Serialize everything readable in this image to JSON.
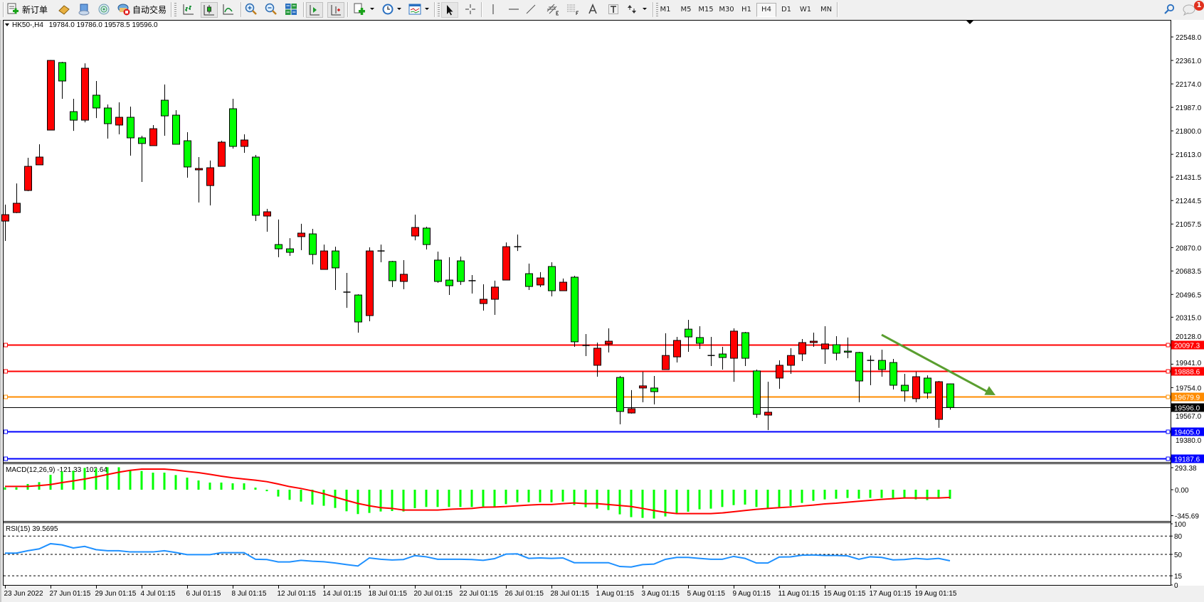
{
  "toolbar": {
    "new_order": "新订单",
    "auto_trading": "自动交易",
    "timeframes": [
      "M1",
      "M5",
      "M15",
      "M30",
      "H1",
      "H4",
      "D1",
      "W1",
      "MN"
    ],
    "active_timeframe": "H4",
    "notification_count": "1"
  },
  "chart": {
    "symbol": "HK50-,H4",
    "ohlc": "19784.0 19786.0 19578.5 19596.0",
    "colors": {
      "bull": "#ff0000",
      "bear": "#00ff00",
      "outline": "#000000",
      "background": "#ffffff"
    },
    "price_axis": [
      "22548.0",
      "22361.0",
      "22174.0",
      "21987.0",
      "21800.0",
      "21613.0",
      "21431.5",
      "21244.5",
      "21057.5",
      "20870.0",
      "20683.5",
      "20496.5",
      "20315.0",
      "20128.0",
      "19941.0",
      "19754.0",
      "19567.0",
      "19380.0"
    ],
    "levels": [
      {
        "price": 20097.3,
        "label": "20097.3",
        "color": "#ff0000"
      },
      {
        "price": 19888.6,
        "label": "19888.6",
        "color": "#ff0000"
      },
      {
        "price": 19679.9,
        "label": "19679.9",
        "color": "#ff8c00"
      },
      {
        "price": 19405.0,
        "label": "19405.0",
        "color": "#0000ff"
      },
      {
        "price": 19187.6,
        "label": "19187.6",
        "color": "#0000ff"
      }
    ],
    "current_price": {
      "price": 19596.0,
      "label": "19596.0",
      "color": "#000000"
    },
    "trend_arrow": {
      "from": {
        "bar": 77,
        "price": 20175
      },
      "to": {
        "bar": 87,
        "price": 19694
      },
      "color": "#5a9e2f"
    },
    "candles": [
      [
        21081,
        21212,
        20923,
        21132
      ],
      [
        21149,
        21381,
        21144,
        21223
      ],
      [
        21325,
        21585,
        21319,
        21517
      ],
      [
        21529,
        21693,
        21529,
        21591
      ],
      [
        21806,
        22365,
        21806,
        22361
      ],
      [
        22344,
        22350,
        22055,
        22197
      ],
      [
        21953,
        22055,
        21800,
        21885
      ],
      [
        21885,
        22338,
        21868,
        22299
      ],
      [
        22084,
        22197,
        21902,
        21982
      ],
      [
        21982,
        22010,
        21738,
        21857
      ],
      [
        21846,
        22027,
        21772,
        21908
      ],
      [
        21908,
        21993,
        21602,
        21744
      ],
      [
        21744,
        21761,
        21393,
        21699
      ],
      [
        21682,
        21846,
        21682,
        21817
      ],
      [
        22044,
        22169,
        21761,
        21919
      ],
      [
        21925,
        21965,
        21693,
        21693
      ],
      [
        21721,
        21789,
        21427,
        21512
      ],
      [
        21489,
        21591,
        21229,
        21500
      ],
      [
        21364,
        21563,
        21206,
        21506
      ],
      [
        21517,
        21721,
        21517,
        21710
      ],
      [
        21976,
        22055,
        21659,
        21676
      ],
      [
        21676,
        21772,
        21625,
        21727
      ],
      [
        21591,
        21608,
        21081,
        21127
      ],
      [
        21121,
        21178,
        20996,
        21155
      ],
      [
        20894,
        21093,
        20793,
        20860
      ],
      [
        20860,
        20945,
        20804,
        20832
      ],
      [
        20957,
        21059,
        20849,
        20985
      ],
      [
        20979,
        21019,
        20736,
        20815
      ],
      [
        20696,
        20894,
        20696,
        20843
      ],
      [
        20843,
        20877,
        20532,
        20708
      ],
      [
        20515,
        20668,
        20390,
        20515
      ],
      [
        20492,
        20498,
        20192,
        20277
      ],
      [
        20328,
        20872,
        20283,
        20843
      ],
      [
        20843,
        20894,
        20753,
        20843
      ],
      [
        20759,
        20764,
        20555,
        20606
      ],
      [
        20600,
        20770,
        20538,
        20657
      ],
      [
        20962,
        21132,
        20928,
        21030
      ],
      [
        21025,
        21036,
        20855,
        20894
      ],
      [
        20770,
        20838,
        20589,
        20600
      ],
      [
        20611,
        20793,
        20492,
        20566
      ],
      [
        20764,
        20798,
        20572,
        20600
      ],
      [
        20606,
        20651,
        20504,
        20606
      ],
      [
        20424,
        20577,
        20368,
        20458
      ],
      [
        20458,
        20606,
        20334,
        20555
      ],
      [
        20611,
        20911,
        20611,
        20877
      ],
      [
        20877,
        20974,
        20843,
        20877
      ],
      [
        20662,
        20742,
        20532,
        20560
      ],
      [
        20572,
        20674,
        20555,
        20628
      ],
      [
        20719,
        20753,
        20481,
        20526
      ],
      [
        20526,
        20623,
        20526,
        20594
      ],
      [
        20634,
        20645,
        20079,
        20119
      ],
      [
        20090,
        20181,
        20005,
        20090
      ],
      [
        19932,
        20113,
        19841,
        20068
      ],
      [
        20102,
        20226,
        20034,
        20124
      ],
      [
        19835,
        19847,
        19462,
        19564
      ],
      [
        19552,
        19734,
        19547,
        19586
      ],
      [
        19751,
        19881,
        19637,
        19768
      ],
      [
        19751,
        19847,
        19620,
        19722
      ],
      [
        19898,
        20187,
        19898,
        20010
      ],
      [
        19999,
        20158,
        19954,
        20130
      ],
      [
        20220,
        20294,
        20039,
        20158
      ],
      [
        20153,
        20243,
        20062,
        20107
      ],
      [
        20010,
        20158,
        19926,
        20010
      ],
      [
        20022,
        20079,
        19898,
        19994
      ],
      [
        19988,
        20226,
        19801,
        20204
      ],
      [
        20192,
        20198,
        19926,
        19988
      ],
      [
        19887,
        19898,
        19513,
        19541
      ],
      [
        19535,
        19801,
        19416,
        19558
      ],
      [
        19830,
        19971,
        19745,
        19932
      ],
      [
        19932,
        20068,
        19864,
        20010
      ],
      [
        20022,
        20141,
        19966,
        20113
      ],
      [
        20113,
        20192,
        20079,
        20124
      ],
      [
        20062,
        20243,
        19943,
        20102
      ],
      [
        20096,
        20164,
        19971,
        20028
      ],
      [
        20045,
        20153,
        19988,
        20039
      ],
      [
        20034,
        20039,
        19637,
        19807
      ],
      [
        19971,
        20010,
        19773,
        19971
      ],
      [
        19971,
        20056,
        19841,
        19898
      ],
      [
        19954,
        19983,
        19739,
        19773
      ],
      [
        19773,
        19864,
        19643,
        19728
      ],
      [
        19666,
        19881,
        19637,
        19841
      ],
      [
        19830,
        19852,
        19666,
        19711
      ],
      [
        19501,
        19807,
        19434,
        19801
      ],
      [
        19784,
        19786,
        19578.5,
        19596
      ]
    ]
  },
  "macd": {
    "label": "MACD(12,26,9) -121.33 -102.64",
    "axis": [
      {
        "value": 293.38,
        "label": "293.38"
      },
      {
        "value": 0,
        "label": "0.00"
      },
      {
        "value": -345.69,
        "label": "-345.69"
      }
    ],
    "histogram_color": "#00ff00",
    "signal_color": "#ff0000",
    "histogram": [
      31,
      31,
      76,
      101,
      198,
      243,
      252,
      290,
      284,
      299,
      299,
      255,
      249,
      227,
      227,
      195,
      161,
      123,
      95,
      95,
      85,
      85,
      28,
      -20,
      -91,
      -135,
      -158,
      -198,
      -214,
      -243,
      -287,
      -324,
      -309,
      -290,
      -284,
      -290,
      -246,
      -230,
      -230,
      -230,
      -230,
      -230,
      -224,
      -224,
      -192,
      -167,
      -167,
      -167,
      -167,
      -158,
      -205,
      -233,
      -252,
      -271,
      -328,
      -365,
      -375,
      -384,
      -356,
      -309,
      -293,
      -261,
      -252,
      -230,
      -205,
      -198,
      -230,
      -255,
      -230,
      -217,
      -176,
      -148,
      -129,
      -120,
      -110,
      -120,
      -110,
      -110,
      -110,
      -110,
      -129,
      -139,
      -120,
      -121.33
    ],
    "signal": [
      44,
      44,
      44,
      54,
      69,
      95,
      117,
      142,
      170,
      202,
      233,
      258,
      274,
      274,
      274,
      261,
      243,
      227,
      205,
      180,
      158,
      142,
      126,
      107,
      76,
      41,
      16,
      -16,
      -54,
      -98,
      -142,
      -183,
      -214,
      -239,
      -249,
      -271,
      -271,
      -271,
      -271,
      -261,
      -255,
      -249,
      -233,
      -230,
      -224,
      -214,
      -205,
      -198,
      -198,
      -186,
      -176,
      -186,
      -186,
      -198,
      -211,
      -224,
      -249,
      -277,
      -302,
      -318,
      -318,
      -318,
      -318,
      -309,
      -293,
      -277,
      -261,
      -249,
      -239,
      -230,
      -217,
      -205,
      -189,
      -180,
      -167,
      -154,
      -142,
      -129,
      -120,
      -110,
      -110,
      -110,
      -110,
      -102.64
    ]
  },
  "rsi": {
    "label": "RSI(15) 39.5695",
    "axis": [
      {
        "value": 100,
        "label": "100"
      },
      {
        "value": 80,
        "label": "80"
      },
      {
        "value": 50,
        "label": "50"
      },
      {
        "value": 15,
        "label": "15"
      },
      {
        "value": 0,
        "label": "0"
      }
    ],
    "levels": [
      80,
      50,
      15
    ],
    "color": "#1e90ff",
    "values": [
      52,
      52,
      56,
      59,
      67.5,
      65.5,
      60.5,
      63,
      57.7,
      56,
      56,
      54,
      54,
      54,
      56,
      53,
      49.6,
      49.6,
      49.6,
      52.7,
      52.7,
      52.7,
      42,
      41.6,
      37.6,
      37.6,
      40.3,
      38.8,
      38,
      35.9,
      33.3,
      31,
      44.2,
      42,
      40.9,
      41.6,
      48,
      46,
      42,
      42,
      42,
      41.6,
      40.3,
      43,
      50.4,
      50.8,
      43.5,
      44.2,
      43.5,
      44.2,
      36.4,
      36.4,
      36.4,
      36.4,
      30.2,
      29.4,
      33.3,
      34.1,
      41.9,
      45,
      45,
      43.5,
      42,
      42,
      46.7,
      43.5,
      35.9,
      35.9,
      45.6,
      46,
      48.7,
      49,
      48.2,
      48.2,
      47.5,
      42,
      46,
      45,
      41,
      41.6,
      43.5,
      42,
      43.5,
      39.57
    ]
  },
  "time_axis": [
    {
      "bar": 0,
      "label": "23 Jun 2022"
    },
    {
      "bar": 4,
      "label": "27 Jun 01:15"
    },
    {
      "bar": 8,
      "label": "29 Jun 01:15"
    },
    {
      "bar": 12,
      "label": "4 Jul 01:15"
    },
    {
      "bar": 16,
      "label": "6 Jul 01:15"
    },
    {
      "bar": 20,
      "label": "8 Jul 01:15"
    },
    {
      "bar": 24,
      "label": "12 Jul 01:15"
    },
    {
      "bar": 28,
      "label": "14 Jul 01:15"
    },
    {
      "bar": 32,
      "label": "18 Jul 01:15"
    },
    {
      "bar": 36,
      "label": "20 Jul 01:15"
    },
    {
      "bar": 40,
      "label": "22 Jul 01:15"
    },
    {
      "bar": 44,
      "label": "26 Jul 01:15"
    },
    {
      "bar": 48,
      "label": "28 Jul 01:15"
    },
    {
      "bar": 52,
      "label": "1 Aug 01:15"
    },
    {
      "bar": 56,
      "label": "3 Aug 01:15"
    },
    {
      "bar": 60,
      "label": "5 Aug 01:15"
    },
    {
      "bar": 64,
      "label": "9 Aug 01:15"
    },
    {
      "bar": 68,
      "label": "11 Aug 01:15"
    },
    {
      "bar": 72,
      "label": "15 Aug 01:15"
    },
    {
      "bar": 76,
      "label": "17 Aug 01:15"
    },
    {
      "bar": 80,
      "label": "19 Aug 01:15"
    }
  ]
}
